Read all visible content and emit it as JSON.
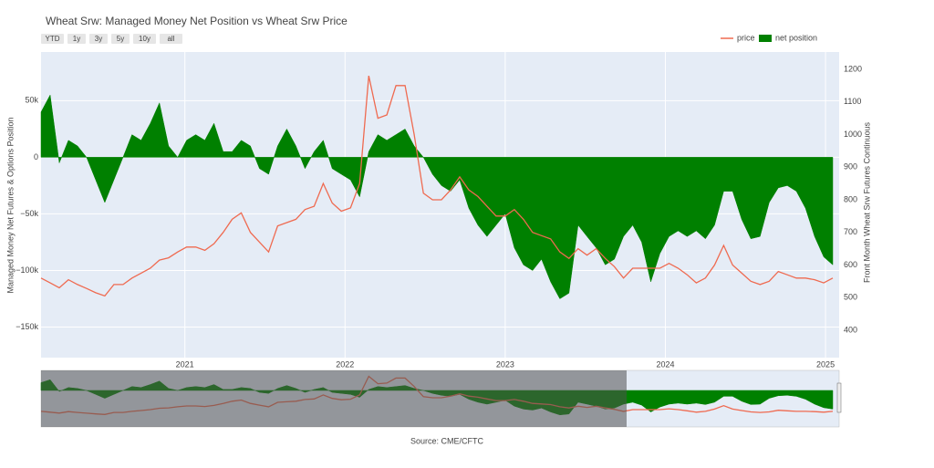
{
  "chart_data": {
    "type": "area-line",
    "title": "Wheat Srw: Managed Money Net Position vs Wheat Srw Price",
    "buttons": [
      "YTD",
      "1y",
      "3y",
      "5y",
      "10y",
      "all"
    ],
    "y_label": "Managed Money Net Futures & Options Position",
    "y2_label": "Front Month Wheat Srw Futures Continuous",
    "source": "Source: CME/CFTC",
    "legend": "top-right",
    "grid": true,
    "xlim": [
      2020.102,
      2025.085
    ],
    "xticks": [
      2021,
      2022,
      2023,
      2024,
      2025
    ],
    "ylim": [
      -177000,
      93000
    ],
    "yticks": [
      {
        "value": 50000,
        "label": "50k"
      },
      0,
      {
        "value": -50000,
        "label": "−50k"
      },
      {
        "value": -100000,
        "label": "−100k"
      },
      {
        "value": -150000,
        "label": "−150k"
      }
    ],
    "y2lim": [
      316,
      1253
    ],
    "y2ticks": [
      400,
      500,
      600,
      700,
      800,
      900,
      1000,
      1100,
      1200
    ],
    "x": [
      2020.102,
      2020.159,
      2020.216,
      2020.273,
      2020.33,
      2020.386,
      2020.443,
      2020.5,
      2020.557,
      2020.614,
      2020.67,
      2020.727,
      2020.784,
      2020.841,
      2020.898,
      2020.955,
      2021.011,
      2021.068,
      2021.125,
      2021.182,
      2021.239,
      2021.295,
      2021.352,
      2021.409,
      2021.466,
      2021.523,
      2021.579,
      2021.636,
      2021.693,
      2021.75,
      2021.807,
      2021.864,
      2021.92,
      2021.977,
      2022.034,
      2022.091,
      2022.148,
      2022.205,
      2022.261,
      2022.318,
      2022.375,
      2022.432,
      2022.489,
      2022.546,
      2022.602,
      2022.659,
      2022.716,
      2022.773,
      2022.83,
      2022.886,
      2022.943,
      2023.0,
      2023.057,
      2023.114,
      2023.171,
      2023.227,
      2023.284,
      2023.341,
      2023.398,
      2023.455,
      2023.511,
      2023.568,
      2023.625,
      2023.682,
      2023.739,
      2023.796,
      2023.852,
      2023.909,
      2023.966,
      2024.023,
      2024.08,
      2024.136,
      2024.193,
      2024.25,
      2024.307,
      2024.364,
      2024.42,
      2024.477,
      2024.534,
      2024.591,
      2024.648,
      2024.705,
      2024.761,
      2024.818,
      2024.875,
      2024.932,
      2024.989,
      2025.045
    ],
    "series": [
      {
        "name": "net position",
        "color": "#008000",
        "kind": "area",
        "values": [
          40000,
          55000,
          -5000,
          15000,
          10000,
          0,
          -20000,
          -40000,
          -20000,
          0,
          20000,
          15000,
          30000,
          48000,
          10000,
          0,
          15000,
          20000,
          15000,
          30000,
          5000,
          5000,
          15000,
          10000,
          -10000,
          -15000,
          10000,
          25000,
          10000,
          -10000,
          5000,
          15000,
          -10000,
          -15000,
          -20000,
          -35000,
          5000,
          20000,
          15000,
          20000,
          25000,
          10000,
          0,
          -15000,
          -25000,
          -30000,
          -20000,
          -45000,
          -60000,
          -70000,
          -60000,
          -50000,
          -80000,
          -95000,
          -100000,
          -90000,
          -110000,
          -125000,
          -120000,
          -60000,
          -70000,
          -80000,
          -95000,
          -90000,
          -70000,
          -60000,
          -75000,
          -110000,
          -85000,
          -70000,
          -65000,
          -70000,
          -65000,
          -72000,
          -60000,
          -30000,
          -30000,
          -55000,
          -72000,
          -70000,
          -40000,
          -27000,
          -25000,
          -30000,
          -45000,
          -70000,
          -88000,
          -95000
        ]
      },
      {
        "name": "price",
        "color": "#ef6a50",
        "kind": "line",
        "axis": "y2",
        "values": [
          560,
          545,
          530,
          555,
          540,
          528,
          515,
          505,
          540,
          540,
          560,
          575,
          590,
          615,
          622,
          640,
          655,
          655,
          645,
          665,
          700,
          740,
          760,
          700,
          670,
          640,
          720,
          730,
          740,
          770,
          780,
          850,
          790,
          765,
          775,
          850,
          1180,
          1050,
          1060,
          1150,
          1150,
          1000,
          820,
          800,
          800,
          830,
          870,
          830,
          810,
          780,
          750,
          750,
          770,
          740,
          700,
          690,
          680,
          640,
          620,
          650,
          630,
          650,
          620,
          595,
          560,
          590,
          590,
          590,
          590,
          605,
          590,
          570,
          545,
          560,
          600,
          660,
          600,
          575,
          550,
          540,
          550,
          580,
          570,
          560,
          560,
          555,
          545,
          560
        ]
      }
    ]
  }
}
